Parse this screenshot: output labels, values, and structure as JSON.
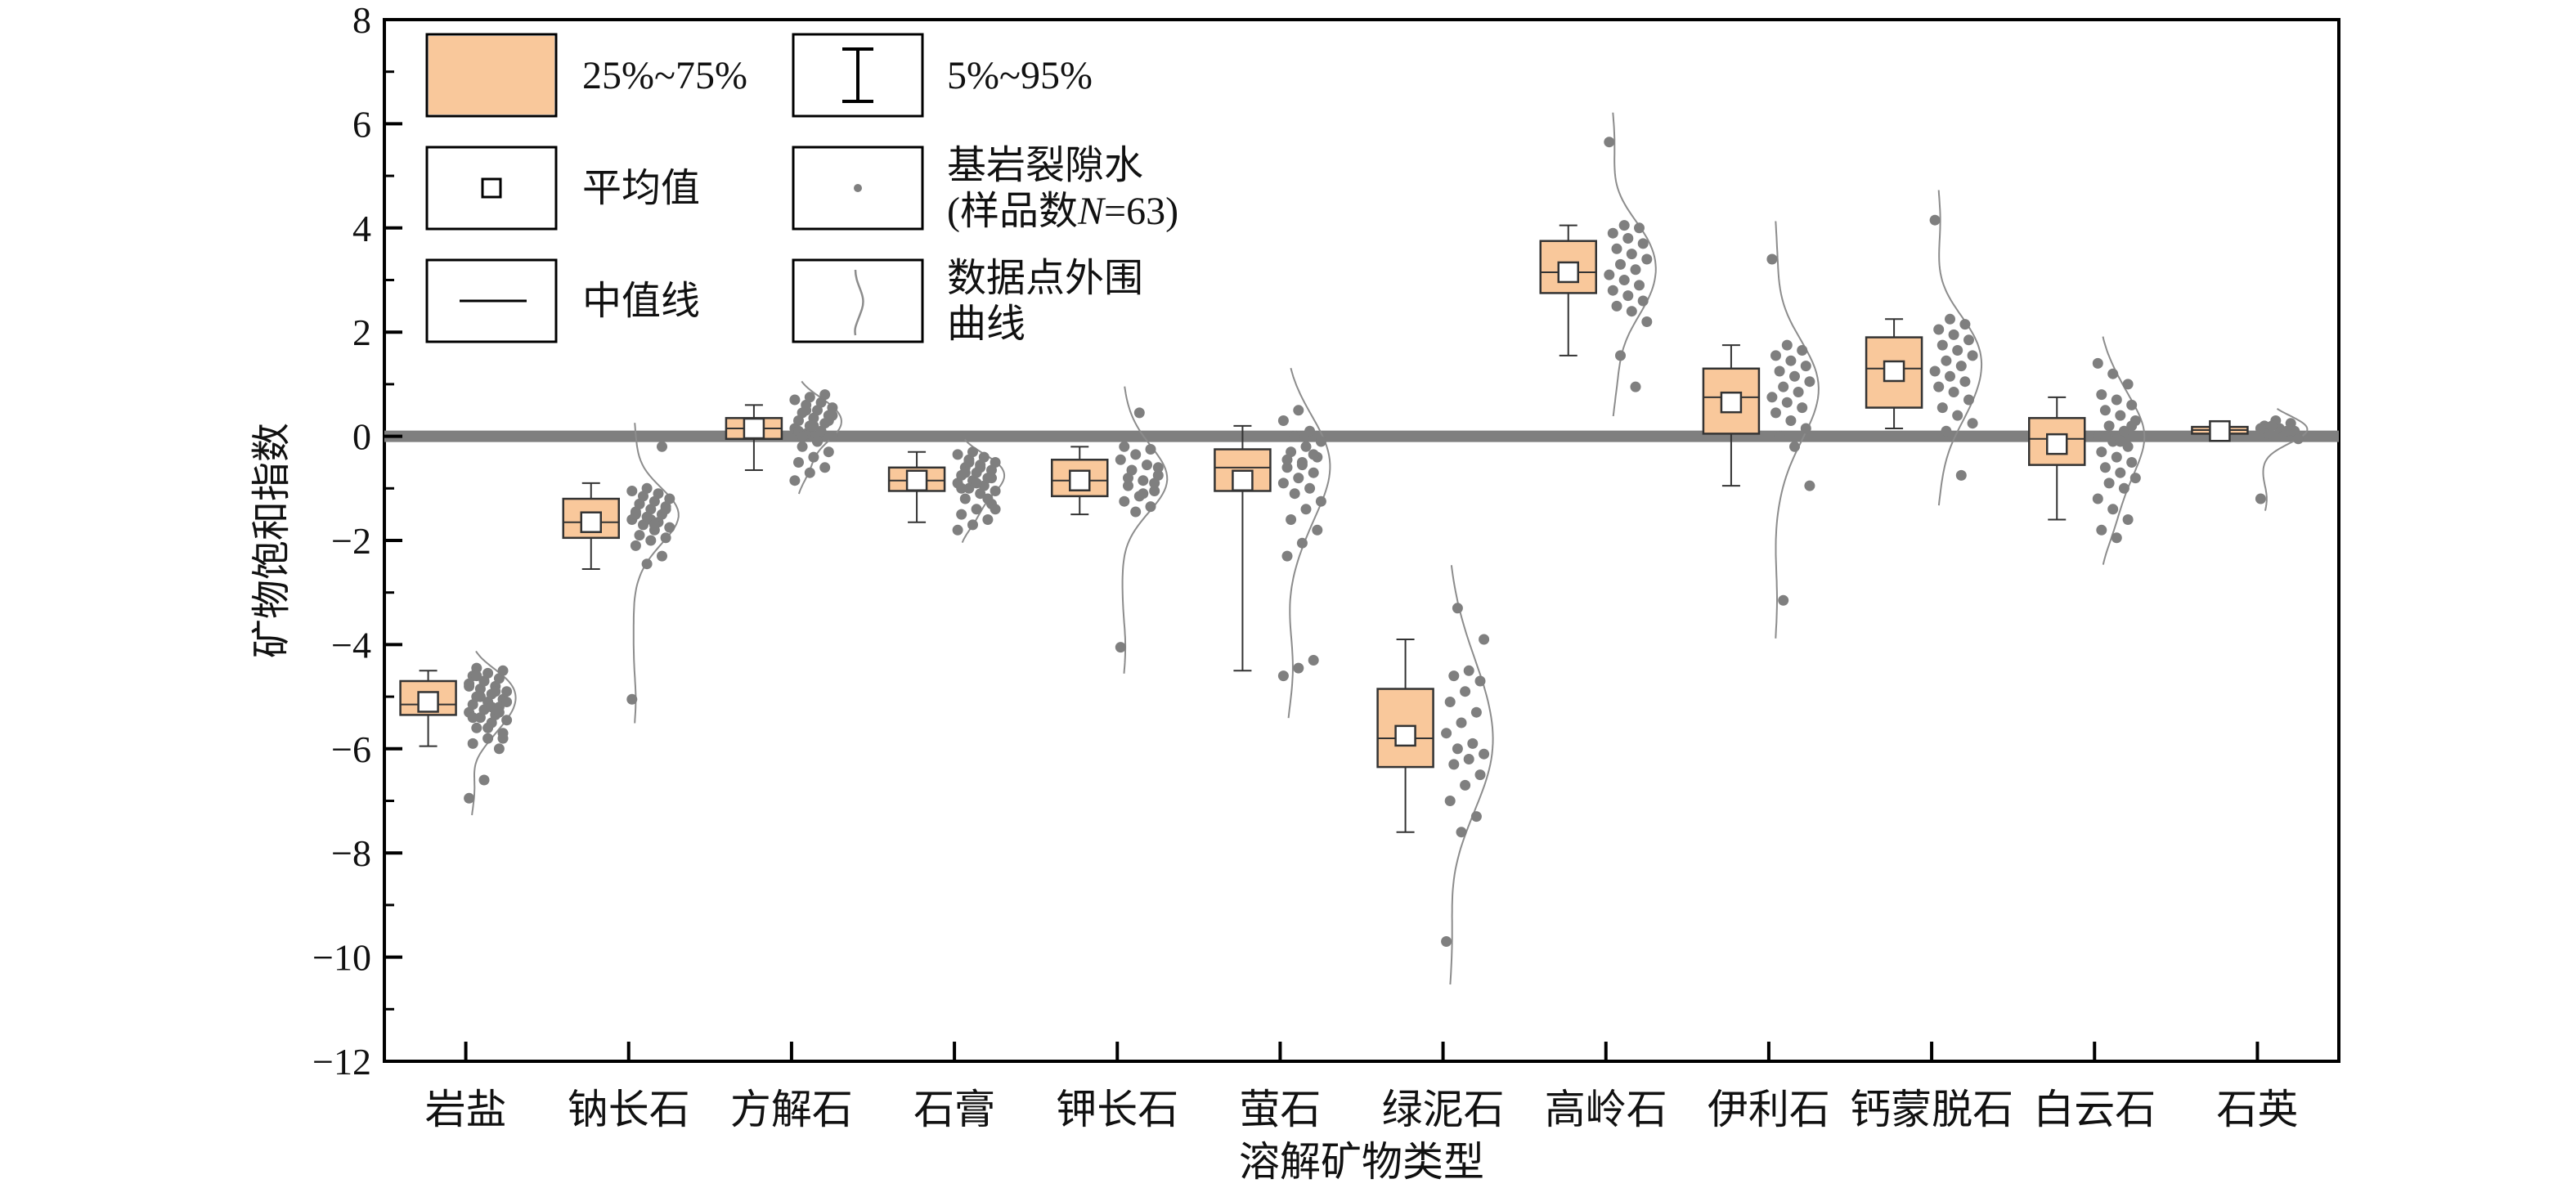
{
  "chart_data": {
    "type": "box",
    "ylabel": "矿物饱和指数",
    "xlabel": "溶解矿物类型",
    "ylim": [
      -12,
      8
    ],
    "yticks": [
      -12,
      -10,
      -8,
      -6,
      -4,
      -2,
      0,
      2,
      4,
      6,
      8
    ],
    "reference_line_y": 0,
    "categories": [
      "岩盐",
      "钠长石",
      "方解石",
      "石膏",
      "钾长石",
      "萤石",
      "绿泥石",
      "高岭石",
      "伊利石",
      "钙蒙脱石",
      "白云石",
      "石英"
    ],
    "boxes": [
      {
        "category": "岩盐",
        "p5": -5.95,
        "q1": -5.35,
        "median": -5.15,
        "q3": -4.7,
        "p95": -4.5,
        "mean": -5.1
      },
      {
        "category": "钠长石",
        "p5": -2.55,
        "q1": -1.95,
        "median": -1.65,
        "q3": -1.2,
        "p95": -0.9,
        "mean": -1.65
      },
      {
        "category": "方解石",
        "p5": -0.65,
        "q1": -0.05,
        "median": 0.15,
        "q3": 0.35,
        "p95": 0.6,
        "mean": 0.15
      },
      {
        "category": "石膏",
        "p5": -1.65,
        "q1": -1.05,
        "median": -0.85,
        "q3": -0.6,
        "p95": -0.3,
        "mean": -0.85
      },
      {
        "category": "钾长石",
        "p5": -1.5,
        "q1": -1.15,
        "median": -0.85,
        "q3": -0.45,
        "p95": -0.2,
        "mean": -0.85
      },
      {
        "category": "萤石",
        "p5": -4.5,
        "q1": -1.05,
        "median": -0.6,
        "q3": -0.25,
        "p95": 0.2,
        "mean": -0.85
      },
      {
        "category": "绿泥石",
        "p5": -7.6,
        "q1": -6.35,
        "median": -5.8,
        "q3": -4.85,
        "p95": -3.9,
        "mean": -5.75
      },
      {
        "category": "高岭石",
        "p5": 1.55,
        "q1": 2.75,
        "median": 3.15,
        "q3": 3.75,
        "p95": 4.05,
        "mean": 3.15
      },
      {
        "category": "伊利石",
        "p5": -0.95,
        "q1": 0.05,
        "median": 0.75,
        "q3": 1.3,
        "p95": 1.75,
        "mean": 0.65
      },
      {
        "category": "钙蒙脱石",
        "p5": 0.15,
        "q1": 0.55,
        "median": 1.3,
        "q3": 1.9,
        "p95": 2.25,
        "mean": 1.25
      },
      {
        "category": "白云石",
        "p5": -1.6,
        "q1": -0.55,
        "median": -0.05,
        "q3": 0.35,
        "p95": 0.75,
        "mean": -0.15
      },
      {
        "category": "石英",
        "p5": 0.05,
        "q1": 0.05,
        "median": 0.12,
        "q3": 0.18,
        "p95": 0.2,
        "mean": 0.1
      }
    ],
    "points": [
      [
        -6.95,
        -6.6,
        -6.0,
        -5.9,
        -5.8,
        -5.7,
        -5.6,
        -5.5,
        -5.45,
        -5.4,
        -5.35,
        -5.3,
        -5.25,
        -5.2,
        -5.15,
        -5.1,
        -5.05,
        -5.0,
        -4.95,
        -4.9,
        -4.85,
        -4.8,
        -4.75,
        -4.7,
        -4.65,
        -4.6,
        -4.55,
        -4.5,
        -4.45,
        -5.2,
        -5.1,
        -5.0,
        -4.9,
        -4.8,
        -4.7,
        -5.3,
        -5.4,
        -5.6,
        -5.8,
        -4.6
      ],
      [
        -5.05,
        -2.45,
        -2.3,
        -2.1,
        -2.0,
        -1.95,
        -1.9,
        -1.8,
        -1.75,
        -1.7,
        -1.65,
        -1.6,
        -1.55,
        -1.5,
        -1.45,
        -1.4,
        -1.35,
        -1.3,
        -1.25,
        -1.2,
        -1.15,
        -1.1,
        -1.05,
        -1.0,
        -0.2,
        -1.5,
        -1.6,
        -1.4,
        -1.3,
        -1.7
      ],
      [
        -0.85,
        -0.7,
        -0.6,
        -0.5,
        -0.4,
        -0.3,
        -0.2,
        -0.1,
        0.0,
        0.05,
        0.1,
        0.15,
        0.2,
        0.25,
        0.3,
        0.35,
        0.4,
        0.45,
        0.5,
        0.55,
        0.6,
        0.65,
        0.7,
        0.75,
        0.8,
        0.1,
        0.2,
        0.3,
        0.0,
        -0.1,
        0.4,
        0.5
      ],
      [
        -1.8,
        -1.7,
        -1.6,
        -1.5,
        -1.4,
        -1.3,
        -1.2,
        -1.1,
        -1.05,
        -1.0,
        -0.95,
        -0.9,
        -0.85,
        -0.8,
        -0.75,
        -0.7,
        -0.65,
        -0.6,
        -0.55,
        -0.5,
        -0.45,
        -0.4,
        -0.35,
        -0.3,
        -1.2,
        -1.0,
        -0.9,
        -0.8,
        -0.7,
        -0.6,
        -1.4,
        -0.5
      ],
      [
        -4.05,
        -1.45,
        -1.35,
        -1.25,
        -1.15,
        -1.05,
        -0.95,
        -0.85,
        -0.75,
        -0.65,
        -0.55,
        -0.45,
        -0.35,
        -0.25,
        -0.2,
        0.45,
        -0.9,
        -0.8,
        -1.1,
        -0.6
      ],
      [
        -4.6,
        -4.45,
        -4.3,
        -2.3,
        -2.05,
        -1.8,
        -1.6,
        -1.4,
        -1.25,
        -1.1,
        -1.0,
        -0.9,
        -0.8,
        -0.7,
        -0.6,
        -0.5,
        -0.4,
        -0.3,
        -0.2,
        -0.1,
        0.0,
        0.1,
        0.3,
        0.5,
        -0.35,
        -0.45,
        -0.55
      ],
      [
        -9.7,
        -7.6,
        -7.3,
        -7.0,
        -6.7,
        -6.5,
        -6.3,
        -6.2,
        -6.1,
        -6.0,
        -5.9,
        -5.7,
        -5.5,
        -5.3,
        -5.1,
        -4.9,
        -4.7,
        -4.6,
        -4.5,
        -3.9,
        -3.3
      ],
      [
        5.65,
        4.05,
        4.0,
        3.9,
        3.8,
        3.7,
        3.6,
        3.5,
        3.4,
        3.3,
        3.2,
        3.1,
        3.0,
        2.9,
        2.8,
        2.7,
        2.6,
        2.5,
        2.4,
        2.2,
        1.55,
        0.95
      ],
      [
        3.4,
        1.75,
        1.65,
        1.55,
        1.45,
        1.35,
        1.25,
        1.15,
        1.05,
        0.95,
        0.85,
        0.75,
        0.65,
        0.55,
        0.45,
        0.3,
        0.15,
        0.0,
        -0.2,
        -0.95,
        -3.15
      ],
      [
        4.15,
        2.25,
        2.15,
        2.05,
        1.95,
        1.85,
        1.75,
        1.65,
        1.55,
        1.45,
        1.35,
        1.25,
        1.15,
        1.05,
        0.95,
        0.85,
        0.7,
        0.55,
        0.4,
        0.25,
        0.1,
        -0.75
      ],
      [
        1.4,
        1.2,
        1.0,
        0.8,
        0.7,
        0.6,
        0.5,
        0.4,
        0.3,
        0.2,
        0.1,
        0.0,
        -0.1,
        -0.2,
        -0.3,
        -0.4,
        -0.5,
        -0.6,
        -0.7,
        -0.8,
        -0.9,
        -1.0,
        -1.2,
        -1.4,
        -1.6,
        -1.8,
        -1.95,
        0.2,
        0.0,
        -0.1
      ],
      [
        -1.2,
        0.3,
        0.25,
        0.2,
        0.15,
        0.1,
        0.05,
        0.0,
        -0.05,
        0.2,
        0.1,
        0.15
      ]
    ],
    "legend": {
      "placement": "top-left",
      "entries": [
        {
          "key": "box",
          "label": "25%~75%"
        },
        {
          "key": "whisker",
          "label": "5%~95%"
        },
        {
          "key": "mean",
          "label": "平均值"
        },
        {
          "key": "points",
          "label_line1": "基岩裂隙水",
          "label_line2_prefix": "(样品数",
          "label_line2_var": "N",
          "label_line2_suffix": "=63)"
        },
        {
          "key": "median",
          "label": "中值线"
        },
        {
          "key": "curve",
          "label_line1": "数据点外围",
          "label_line2": "曲线"
        }
      ]
    },
    "colors": {
      "box_fill": "#f9c89b",
      "box_stroke": "#333333",
      "point": "#7f7f7f",
      "zero_line": "#7f7f7f",
      "curve": "#8c8c8c",
      "axis": "#000000"
    }
  }
}
